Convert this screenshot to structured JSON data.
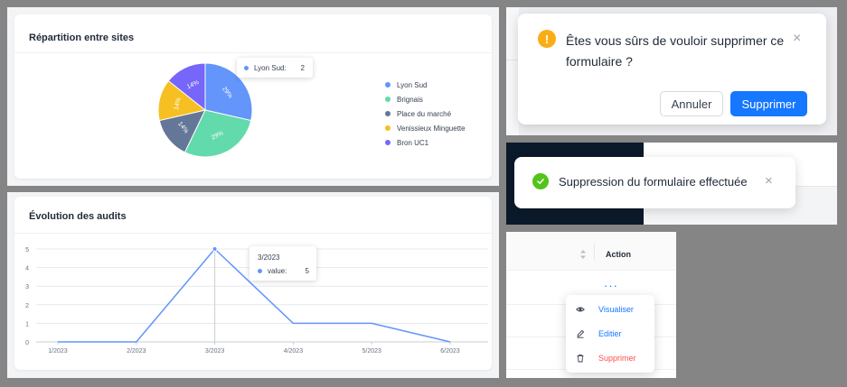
{
  "pie_card": {
    "title": "Répartition entre sites",
    "tooltip": {
      "label": "Lyon Sud:",
      "value": "2"
    }
  },
  "line_card": {
    "title": "Évolution des audits",
    "tooltip": {
      "title": "3/2023",
      "label": "value:",
      "value": "5"
    }
  },
  "confirm_dialog": {
    "message_line1": "Êtes vous sûrs de vouloir supprimer ce",
    "message_line2": "formulaire ?",
    "cancel_label": "Annuler",
    "confirm_label": "Supprimer"
  },
  "toast": {
    "message": "Suppression du formulaire effectuée"
  },
  "table": {
    "column_header": "Action",
    "more_label": "···",
    "menu": [
      {
        "label": "Visualiser",
        "icon": "eye-icon",
        "color": "#1677ff"
      },
      {
        "label": "Editier",
        "icon": "edit-icon",
        "color": "#1677ff"
      },
      {
        "label": "Supprimer",
        "icon": "trash-icon",
        "color": "#ff4d4f"
      }
    ]
  },
  "chart_data": [
    {
      "type": "pie",
      "title": "Répartition entre sites",
      "categories": [
        "Lyon Sud",
        "Brignais",
        "Place du marché",
        "Venissieux Minguette",
        "Bron UC1"
      ],
      "values": [
        2,
        2,
        1,
        1,
        1
      ],
      "slice_labels": [
        "29%",
        "29%",
        "14%",
        "14%",
        "14%"
      ],
      "colors": [
        "#6395fa",
        "#62daab",
        "#657798",
        "#f6c022",
        "#7666f9"
      ],
      "legend": "right"
    },
    {
      "type": "line",
      "title": "Évolution des audits",
      "x": [
        "1/2023",
        "2/2023",
        "3/2023",
        "4/2023",
        "5/2023",
        "6/2023"
      ],
      "series": [
        {
          "values": [
            0,
            0,
            5,
            1,
            1,
            0
          ],
          "color": "#6395fa"
        }
      ],
      "y_ticks": [
        0,
        1,
        2,
        3,
        4,
        5
      ],
      "ylim": [
        0,
        5
      ],
      "grid": true
    }
  ]
}
